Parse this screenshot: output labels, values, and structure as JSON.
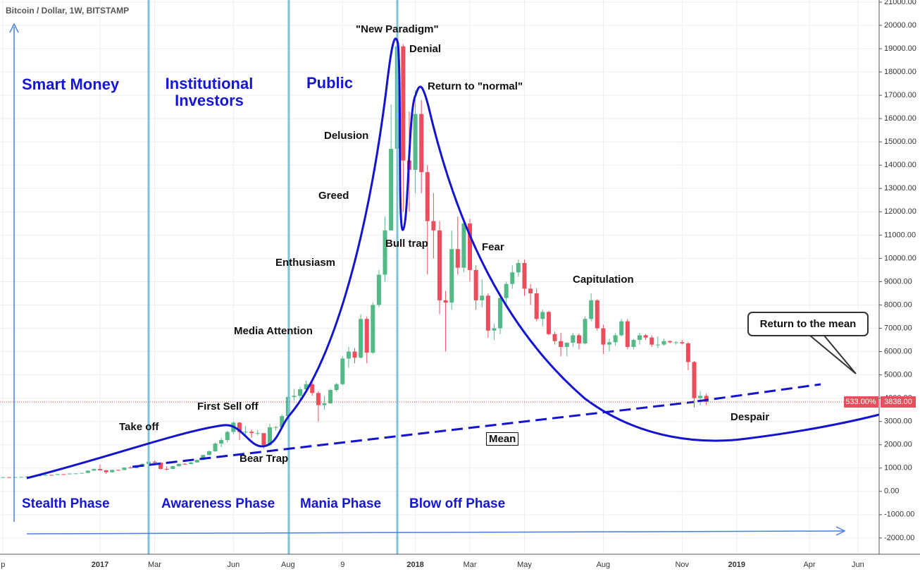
{
  "chart_data": {
    "type": "candlestick",
    "title": "Bitcoin / Dollar, 1W, BITSTAMP",
    "categories": [
      "p",
      null,
      null,
      null,
      null,
      null,
      null,
      null,
      null,
      null,
      null,
      null,
      null,
      null,
      null,
      null,
      "2017",
      null,
      null,
      null,
      null,
      null,
      null,
      null,
      null,
      "Mar",
      null,
      null,
      null,
      null,
      null,
      null,
      null,
      null,
      null,
      null,
      null,
      null,
      "Jun",
      null,
      null,
      null,
      null,
      null,
      null,
      null,
      null,
      "Aug",
      null,
      null,
      null,
      null,
      null,
      null,
      null,
      null,
      "9",
      null,
      null,
      null,
      null,
      null,
      null,
      null,
      null,
      null,
      null,
      null,
      "2018",
      null,
      null,
      null,
      null,
      null,
      null,
      null,
      null,
      "Mar",
      null,
      null,
      null,
      null,
      null,
      null,
      null,
      null,
      "May",
      null,
      null,
      null,
      null,
      null,
      null,
      null,
      null,
      null,
      null,
      null,
      null,
      "Aug",
      null,
      null,
      null,
      null,
      null,
      null,
      null,
      null,
      null,
      null,
      null,
      null,
      "Nov",
      null,
      null,
      null,
      null,
      null,
      null,
      null,
      null,
      "2019",
      null,
      null,
      null,
      null,
      null,
      null,
      null,
      null,
      null,
      null,
      null,
      "Apr",
      null,
      null,
      null,
      null,
      null,
      null,
      null,
      "Jun",
      null,
      null,
      null
    ],
    "open": [
      600,
      608,
      600,
      612,
      617,
      640,
      653,
      700,
      705,
      704,
      737,
      735,
      764,
      770,
      790,
      890,
      960,
      905,
      820,
      920,
      915,
      1020,
      995,
      1055,
      1180,
      1270,
      1230,
      965,
      960,
      1080,
      1180,
      1170,
      1240,
      1350,
      1560,
      1720,
      2050,
      2200,
      2550,
      2950,
      2550,
      2560,
      2500,
      2500,
      1980,
      2750,
      2760,
      3230,
      4050,
      4100,
      4380,
      4600,
      4220,
      3700,
      3780,
      4350,
      4600,
      5700,
      6000,
      5740,
      7400,
      5950,
      8000,
      9300,
      11200,
      14700,
      19100,
      14200,
      13800,
      16200,
      13700,
      11600,
      11200,
      8200,
      8100,
      10400,
      9600,
      11500,
      9500,
      8200,
      8400,
      6900,
      7000,
      8300,
      8900,
      9400,
      9800,
      8700,
      8500,
      7400,
      7700,
      6750,
      6450,
      6200,
      6380,
      6700,
      6350,
      7400,
      8200,
      7000,
      6300,
      6400,
      6700,
      7300,
      6200,
      6500,
      6700,
      6600,
      6300,
      6300,
      6450,
      6400,
      6400,
      6350,
      5550,
      4000,
      4100,
      null,
      null,
      null,
      null,
      null,
      null,
      null,
      null,
      null,
      null,
      null,
      null,
      null,
      null,
      null,
      null,
      null,
      null,
      null,
      null,
      null,
      null,
      null,
      null,
      null,
      null,
      null,
      null
    ],
    "high": [
      615,
      612,
      616,
      624,
      645,
      660,
      705,
      740,
      712,
      745,
      745,
      770,
      780,
      800,
      900,
      980,
      1150,
      920,
      930,
      935,
      1030,
      1070,
      1060,
      1190,
      1290,
      1330,
      1260,
      1080,
      1100,
      1200,
      1210,
      1260,
      1360,
      1580,
      1760,
      2100,
      2300,
      2600,
      3000,
      2980,
      2800,
      2650,
      2630,
      2500,
      2900,
      2800,
      3300,
      4100,
      4400,
      4480,
      4750,
      4700,
      4300,
      4100,
      4400,
      4650,
      5800,
      6200,
      6150,
      7600,
      7500,
      8100,
      9500,
      11800,
      16600,
      19200,
      19200,
      16300,
      17200,
      16800,
      14000,
      12800,
      11600,
      8600,
      11200,
      11800,
      11700,
      11700,
      9700,
      9100,
      8500,
      7200,
      8400,
      9000,
      9700,
      9950,
      9950,
      8900,
      8700,
      7800,
      7750,
      6850,
      6800,
      6400,
      6800,
      6780,
      7500,
      8500,
      8250,
      7150,
      6550,
      6800,
      7400,
      7400,
      6550,
      6800,
      6750,
      6700,
      6650,
      6550,
      6480,
      6450,
      6500,
      6400,
      5600,
      4300,
      4200,
      null,
      null,
      null,
      null,
      null,
      null,
      null,
      null,
      null,
      null,
      null,
      null,
      null,
      null,
      null,
      null,
      null,
      null,
      null,
      null,
      null,
      null,
      null,
      null,
      null,
      null,
      null,
      null
    ],
    "low": [
      590,
      592,
      596,
      608,
      612,
      632,
      648,
      690,
      680,
      695,
      725,
      730,
      755,
      765,
      785,
      880,
      890,
      750,
      800,
      880,
      910,
      980,
      990,
      1050,
      1170,
      1150,
      930,
      890,
      950,
      1060,
      1150,
      1160,
      1230,
      1340,
      1550,
      1700,
      1900,
      2100,
      2450,
      2200,
      2450,
      2300,
      2400,
      1840,
      1950,
      2600,
      2700,
      3200,
      3900,
      3950,
      4300,
      4100,
      3000,
      3500,
      3750,
      4280,
      4550,
      5300,
      5500,
      5700,
      5500,
      5900,
      7900,
      9000,
      11200,
      14000,
      12000,
      12000,
      12800,
      12800,
      9300,
      10000,
      7600,
      6000,
      7800,
      9300,
      9400,
      9000,
      7800,
      7900,
      6600,
      6500,
      6750,
      8000,
      8700,
      9200,
      8400,
      8000,
      7300,
      7100,
      6700,
      6300,
      5800,
      5800,
      6200,
      6100,
      6300,
      7300,
      6900,
      5900,
      6000,
      6250,
      6650,
      6100,
      6100,
      6300,
      6500,
      6200,
      6150,
      6250,
      6350,
      6300,
      6300,
      5200,
      3600,
      3700,
      3700,
      null,
      null,
      null,
      null,
      null,
      null,
      null,
      null,
      null,
      null,
      null,
      null,
      null,
      null,
      null,
      null,
      null,
      null,
      null,
      null,
      null,
      null,
      null,
      null,
      null,
      null,
      null,
      null
    ],
    "close": [
      608,
      600,
      612,
      617,
      640,
      653,
      700,
      705,
      704,
      737,
      735,
      764,
      770,
      790,
      890,
      960,
      905,
      820,
      920,
      915,
      1020,
      995,
      1055,
      1180,
      1270,
      1230,
      965,
      960,
      1080,
      1180,
      1170,
      1240,
      1350,
      1560,
      1720,
      2050,
      2200,
      2550,
      2950,
      2550,
      2560,
      2500,
      2500,
      1980,
      2750,
      2760,
      3230,
      4050,
      4100,
      4380,
      4600,
      4220,
      3700,
      3780,
      4350,
      4600,
      5700,
      6000,
      5740,
      7400,
      5950,
      8000,
      9300,
      11200,
      14700,
      19100,
      14200,
      13800,
      16200,
      13700,
      11600,
      11200,
      8200,
      8100,
      10400,
      9600,
      11500,
      9500,
      8200,
      8400,
      6900,
      7000,
      8300,
      8900,
      9400,
      9800,
      8700,
      8500,
      7400,
      7700,
      6750,
      6450,
      6200,
      6380,
      6700,
      6350,
      7400,
      8200,
      7000,
      6300,
      6400,
      6700,
      7300,
      6200,
      6500,
      6700,
      6600,
      6300,
      6300,
      6450,
      6400,
      6400,
      6350,
      5550,
      4000,
      4100,
      3838,
      null,
      null,
      null,
      null,
      null,
      null,
      null,
      null,
      null,
      null,
      null,
      null,
      null,
      null,
      null,
      null,
      null,
      null,
      null,
      null,
      null,
      null,
      null,
      null,
      null,
      null,
      null,
      null
    ],
    "up_color": "#53b987",
    "down_color": "#eb4d5c",
    "ylim": [
      -2700,
      21090
    ],
    "yticks": [
      {
        "value": -2000,
        "label": "-2000.00"
      },
      {
        "value": -1000,
        "label": "-1000.00"
      },
      {
        "value": 0,
        "label": "0.00"
      },
      {
        "value": 1000,
        "label": "1000.00"
      },
      {
        "value": 2000,
        "label": "2000.00"
      },
      {
        "value": 3000,
        "label": "3000.00"
      },
      {
        "value": 4000,
        "label": "4000.00"
      },
      {
        "value": 5000,
        "label": "5000.00"
      },
      {
        "value": 6000,
        "label": "6000.00"
      },
      {
        "value": 7000,
        "label": "7000.00"
      },
      {
        "value": 8000,
        "label": "8000.00"
      },
      {
        "value": 9000,
        "label": "9000.00"
      },
      {
        "value": 10000,
        "label": "10000.00"
      },
      {
        "value": 11000,
        "label": "11000.00"
      },
      {
        "value": 12000,
        "label": "12000.00"
      },
      {
        "value": 13000,
        "label": "13000.00"
      },
      {
        "value": 14000,
        "label": "14000.00"
      },
      {
        "value": 15000,
        "label": "15000.00"
      },
      {
        "value": 16000,
        "label": "16000.00"
      },
      {
        "value": 17000,
        "label": "17000.00"
      },
      {
        "value": 18000,
        "label": "18000.00"
      },
      {
        "value": 19000,
        "label": "19000.00"
      },
      {
        "value": 20000,
        "label": "20000.00"
      },
      {
        "value": 21000,
        "label": "21000.00"
      }
    ],
    "grid": true,
    "price_label": {
      "value": 3838,
      "label": "3838.00"
    },
    "change_label": "533.00%",
    "annotations": [
      "Smart Money",
      "Institutional Investors",
      "Public",
      "Stealth Phase",
      "Awareness Phase",
      "Mania Phase",
      "Blow off Phase",
      "\"New Paradigm\"",
      "Denial",
      "Return to \"normal\"",
      "Delusion",
      "Greed",
      "Enthusiasm",
      "Bull trap",
      "Fear",
      "Capitulation",
      "Media Attention",
      "First Sell off",
      "Take off",
      "Bear Trap",
      "Mean",
      "Despair",
      "Return to the mean"
    ]
  }
}
